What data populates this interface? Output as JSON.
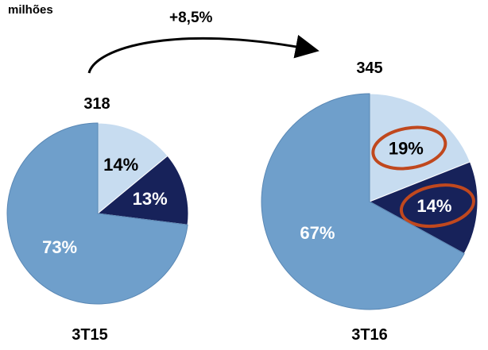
{
  "unit_label": "milhões",
  "growth_label": "+8,5%",
  "colors": {
    "light": "#c7dcf0",
    "dark": "#17225a",
    "main": "#6f9fcb",
    "main_edge": "#5a88b5",
    "highlight": "#c0481e"
  },
  "chart_data": [
    {
      "type": "pie",
      "category": "3T15",
      "total_label": "318",
      "total": 318,
      "slices": [
        {
          "label": "14%",
          "value": 14,
          "color_key": "light"
        },
        {
          "label": "13%",
          "value": 13,
          "color_key": "dark"
        },
        {
          "label": "73%",
          "value": 73,
          "color_key": "main"
        }
      ]
    },
    {
      "type": "pie",
      "category": "3T16",
      "total_label": "345",
      "total": 345,
      "slices": [
        {
          "label": "19%",
          "value": 19,
          "color_key": "light",
          "highlighted": true
        },
        {
          "label": "14%",
          "value": 14,
          "color_key": "dark",
          "highlighted": true
        },
        {
          "label": "67%",
          "value": 67,
          "color_key": "main"
        }
      ]
    }
  ]
}
